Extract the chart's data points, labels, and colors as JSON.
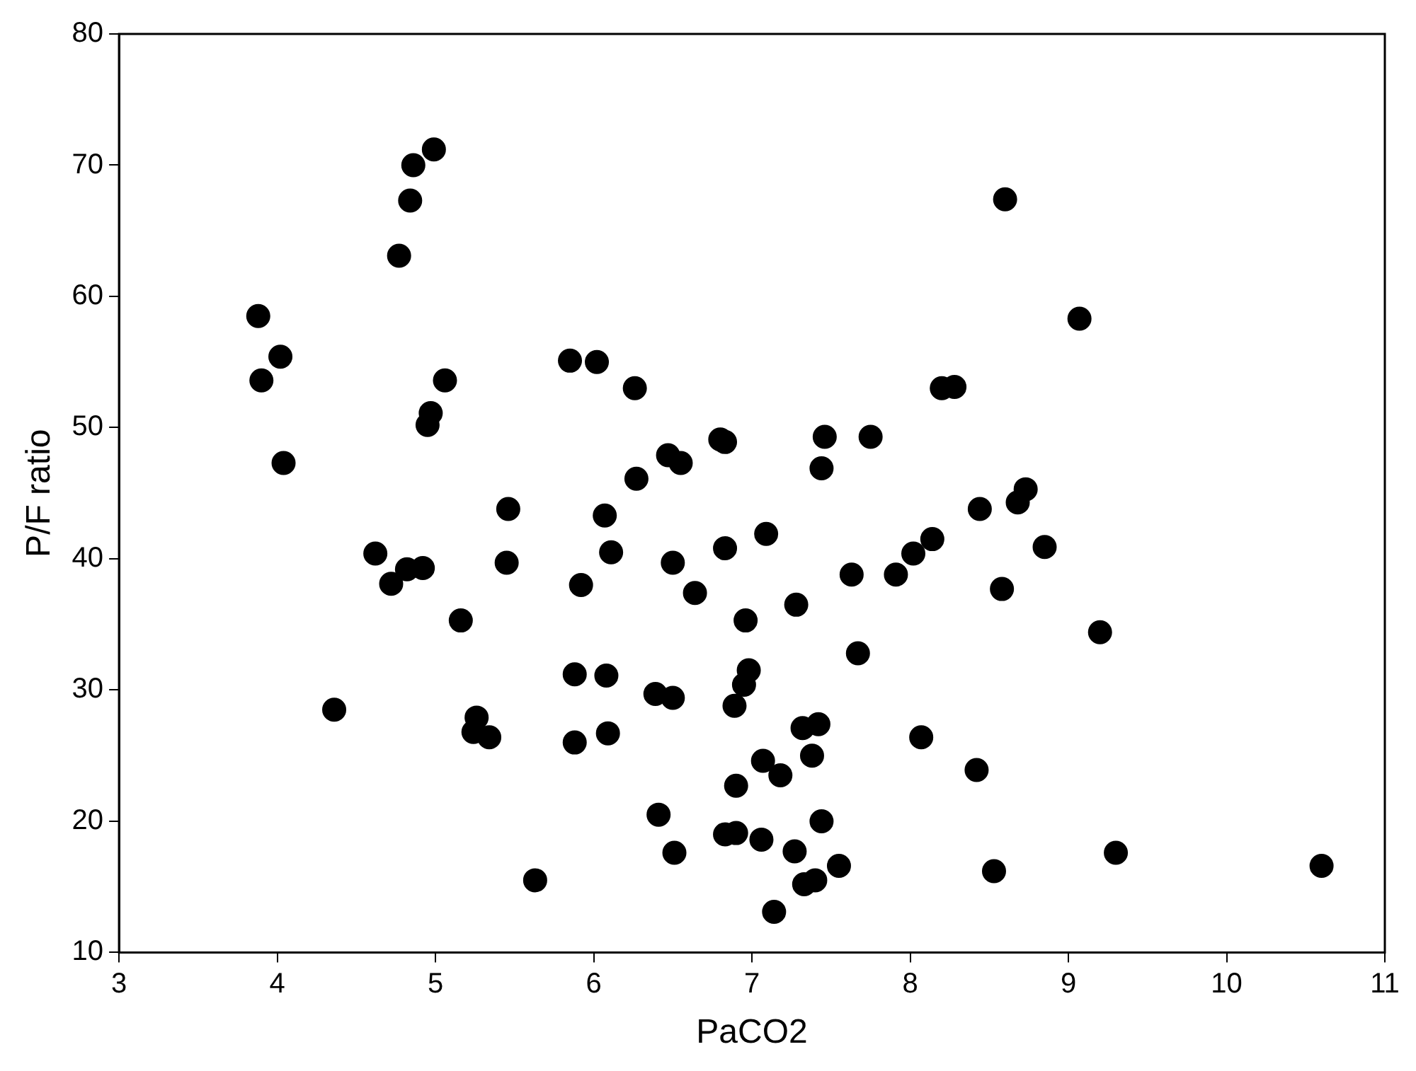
{
  "chart_data": {
    "type": "scatter",
    "xlabel": "PaCO2",
    "ylabel": "P/F ratio",
    "xlim": [
      3,
      11
    ],
    "xticks": [
      3,
      4,
      5,
      6,
      7,
      8,
      9,
      10,
      11
    ],
    "ylim": [
      10,
      80
    ],
    "yticks": [
      10,
      20,
      30,
      40,
      50,
      60,
      70,
      80
    ],
    "grid": false,
    "legend": false,
    "marker": "circle",
    "series": [
      {
        "color": "#000000",
        "x": [
          3.88,
          3.9,
          4.02,
          4.04,
          4.36,
          4.62,
          4.72,
          4.77,
          4.82,
          4.84,
          4.86,
          4.92,
          4.95,
          4.97,
          4.99,
          5.06,
          5.16,
          5.24,
          5.26,
          5.34,
          5.45,
          5.46,
          5.63,
          5.85,
          5.88,
          5.88,
          5.92,
          6.02,
          6.07,
          6.08,
          6.09,
          6.11,
          6.26,
          6.27,
          6.39,
          6.41,
          6.47,
          6.5,
          6.5,
          6.51,
          6.55,
          6.64,
          6.8,
          6.83,
          6.83,
          6.83,
          6.89,
          6.9,
          6.9,
          6.95,
          6.96,
          6.98,
          7.06,
          7.07,
          7.09,
          7.14,
          7.18,
          7.27,
          7.28,
          7.32,
          7.33,
          7.38,
          7.4,
          7.42,
          7.44,
          7.44,
          7.46,
          7.55,
          7.63,
          7.67,
          7.75,
          7.91,
          8.02,
          8.07,
          8.14,
          8.2,
          8.28,
          8.42,
          8.44,
          8.53,
          8.58,
          8.6,
          8.68,
          8.73,
          8.85,
          9.07,
          9.2,
          9.3,
          10.6
        ],
        "values": [
          58.5,
          53.6,
          55.4,
          47.3,
          28.5,
          40.4,
          38.1,
          63.1,
          39.2,
          67.3,
          70.0,
          39.3,
          50.2,
          51.1,
          71.2,
          53.6,
          35.3,
          26.8,
          27.9,
          26.4,
          39.7,
          43.8,
          15.5,
          55.1,
          31.2,
          26.0,
          38.0,
          55.0,
          43.3,
          31.1,
          26.7,
          40.5,
          53.0,
          46.1,
          29.7,
          20.5,
          47.9,
          29.4,
          39.7,
          17.6,
          47.3,
          37.4,
          49.1,
          48.9,
          40.8,
          19.0,
          28.8,
          22.7,
          19.1,
          30.4,
          35.3,
          31.5,
          18.6,
          24.6,
          41.9,
          13.1,
          23.5,
          17.7,
          36.5,
          27.1,
          15.2,
          25.0,
          15.5,
          27.4,
          20.0,
          46.9,
          49.3,
          16.6,
          38.8,
          32.8,
          49.3,
          38.8,
          40.4,
          26.4,
          41.5,
          53.0,
          53.1,
          23.9,
          43.8,
          16.2,
          37.7,
          67.4,
          44.3,
          45.3,
          40.9,
          58.3,
          34.4,
          17.6,
          16.6
        ]
      }
    ]
  }
}
